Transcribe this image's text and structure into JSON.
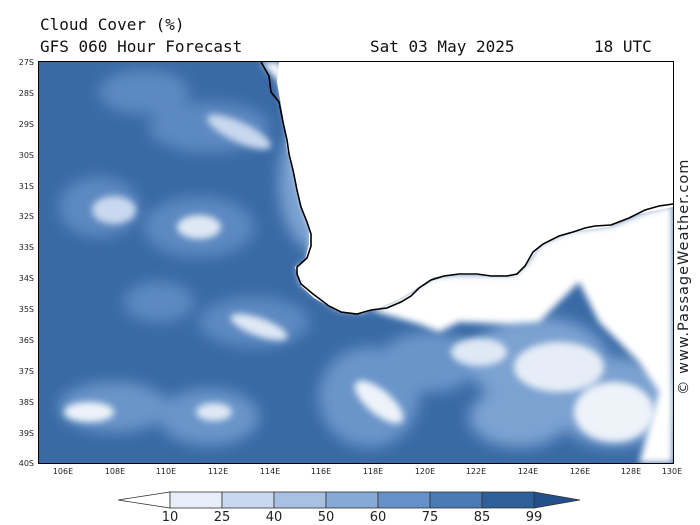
{
  "header": {
    "title": "Cloud Cover (%)",
    "subtitle": "GFS 060 Hour Forecast",
    "date": "Sat 03 May 2025",
    "time": "18 UTC"
  },
  "map": {
    "latitude_labels": [
      "27S",
      "28S",
      "29S",
      "30S",
      "31S",
      "32S",
      "33S",
      "34S",
      "35S",
      "36S",
      "37S",
      "38S",
      "39S",
      "40S"
    ],
    "longitude_labels": [
      "106E",
      "108E",
      "110E",
      "112E",
      "114E",
      "116E",
      "118E",
      "120E",
      "122E",
      "124E",
      "126E",
      "128E",
      "130E"
    ],
    "land_color": "#ffffff",
    "base_cloud_color": "#2f5f9a"
  },
  "credit": "© www.PassageWeather.com",
  "legend": {
    "labels": [
      "10",
      "25",
      "40",
      "50",
      "60",
      "75",
      "85",
      "99"
    ],
    "colors": [
      "#ffffff",
      "#e8eef8",
      "#c9d8ee",
      "#a8c0e2",
      "#87a9d6",
      "#6691c8",
      "#4a79b6",
      "#2f5f9a",
      "#23508a"
    ]
  }
}
